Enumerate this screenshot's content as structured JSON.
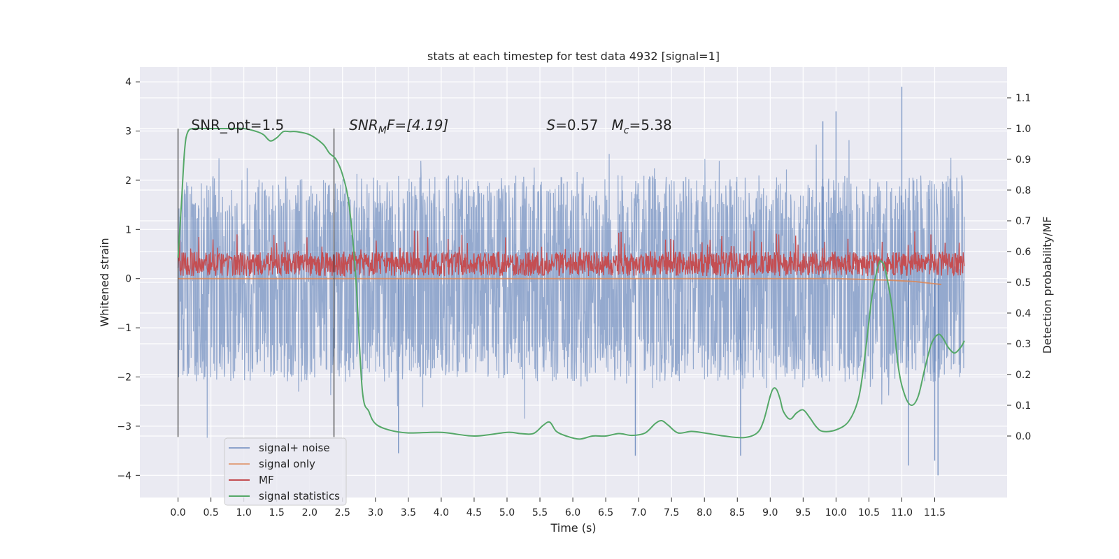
{
  "chart_data": {
    "type": "line",
    "title": "stats at each timestep for test data 4932 [signal=1]",
    "xlabel": "Time (s)",
    "ylabel": "Whitened strain",
    "y2label": "Detection probability/MF",
    "xlim": [
      -0.58,
      12.6
    ],
    "ylim": [
      -4.45,
      4.3
    ],
    "y2lim": [
      -0.2,
      1.2
    ],
    "x_ticks": [
      0.0,
      0.5,
      1.0,
      1.5,
      2.0,
      2.5,
      3.0,
      3.5,
      4.0,
      4.5,
      5.0,
      5.5,
      6.0,
      6.5,
      7.0,
      7.5,
      8.0,
      8.5,
      9.0,
      9.5,
      10.0,
      10.5,
      11.0,
      11.5
    ],
    "x_tick_labels": [
      "0.0",
      "0.5",
      "1.0",
      "1.5",
      "2.0",
      "2.5",
      "3.0",
      "3.5",
      "4.0",
      "4.5",
      "5.0",
      "5.5",
      "6.0",
      "6.5",
      "7.0",
      "7.5",
      "8.0",
      "8.5",
      "9.0",
      "9.5",
      "10.0",
      "10.5",
      "11.0",
      "11.5"
    ],
    "y_ticks": [
      -4,
      -3,
      -2,
      -1,
      0,
      1,
      2,
      3,
      4
    ],
    "y_tick_labels": [
      "−4",
      "−3",
      "−2",
      "−1",
      "0",
      "1",
      "2",
      "3",
      "4"
    ],
    "y2_ticks": [
      0.0,
      0.1,
      0.2,
      0.3,
      0.4,
      0.5,
      0.6,
      0.7,
      0.8,
      0.9,
      1.0,
      1.1
    ],
    "y2_tick_labels": [
      "0.0",
      "0.1",
      "0.2",
      "0.3",
      "0.4",
      "0.5",
      "0.6",
      "0.7",
      "0.8",
      "0.9",
      "1.0",
      "1.1"
    ],
    "grid": true,
    "legend_position": "lower-left",
    "vertical_markers": [
      0.0,
      2.37
    ],
    "annotations": [
      {
        "text": "SNR_opt=1.5",
        "x": 0.2,
        "y": 3.02,
        "italic": false
      },
      {
        "text": "SNRₘF=[4.19]",
        "x": 2.6,
        "y": 3.02,
        "italic": true,
        "parts": [
          "SNR",
          "M",
          "F=[4.19]"
        ]
      },
      {
        "text": "S=0.57   Mᴄ=5.38",
        "x": 5.6,
        "y": 3.02,
        "italic": true,
        "parts": [
          "S",
          "=0.57   ",
          "M",
          "c",
          "=5.38"
        ]
      }
    ],
    "series": [
      {
        "name": "signal+ noise",
        "color": "#4c72b0",
        "axis": "left",
        "kind": "noise",
        "x_range": [
          0.0,
          11.95
        ],
        "envelope_typical": 1.7,
        "peaks": [
          [
            11.0,
            3.9
          ],
          [
            11.55,
            -4.0
          ],
          [
            11.1,
            -3.8
          ],
          [
            6.95,
            -3.6
          ],
          [
            3.35,
            -3.55
          ],
          [
            8.55,
            -3.6
          ],
          [
            10.0,
            3.4
          ],
          [
            9.8,
            3.2
          ],
          [
            11.5,
            -3.7
          ]
        ]
      },
      {
        "name": "signal only",
        "color": "#dd8452",
        "axis": "left",
        "x": [
          0.0,
          2.0,
          4.0,
          6.0,
          8.0,
          10.0,
          10.8,
          11.2,
          11.6
        ],
        "y": [
          0.0,
          0.0,
          0.0,
          0.0,
          0.0,
          0.0,
          -0.03,
          -0.06,
          -0.12
        ]
      },
      {
        "name": "MF",
        "color": "#c44e52",
        "axis": "left",
        "kind": "mf_noise",
        "x_range": [
          0.0,
          11.95
        ],
        "base": 0.05,
        "typical_max": 0.55,
        "peak_max": 0.98
      },
      {
        "name": "signal statistics",
        "color": "#55a868",
        "axis": "right",
        "x": [
          0.0,
          0.05,
          0.1,
          0.15,
          0.25,
          0.4,
          0.6,
          0.8,
          1.0,
          1.2,
          1.3,
          1.4,
          1.5,
          1.6,
          1.7,
          1.8,
          2.0,
          2.2,
          2.3,
          2.4,
          2.5,
          2.6,
          2.7,
          2.8,
          2.9,
          3.0,
          3.2,
          3.5,
          4.0,
          4.5,
          5.0,
          5.2,
          5.4,
          5.55,
          5.65,
          5.75,
          5.9,
          6.1,
          6.3,
          6.5,
          6.7,
          6.9,
          7.1,
          7.25,
          7.35,
          7.45,
          7.6,
          7.8,
          8.0,
          8.3,
          8.6,
          8.8,
          8.9,
          9.0,
          9.05,
          9.1,
          9.15,
          9.2,
          9.3,
          9.4,
          9.5,
          9.6,
          9.7,
          9.8,
          10.0,
          10.2,
          10.35,
          10.45,
          10.55,
          10.65,
          10.7,
          10.75,
          10.85,
          10.95,
          11.05,
          11.15,
          11.25,
          11.35,
          11.45,
          11.55,
          11.62,
          11.7,
          11.8,
          11.9,
          11.95
        ],
        "y": [
          0.58,
          0.75,
          0.93,
          0.99,
          1.0,
          1.0,
          1.0,
          1.0,
          1.0,
          0.99,
          0.98,
          0.96,
          0.97,
          0.99,
          0.99,
          0.99,
          0.98,
          0.95,
          0.92,
          0.9,
          0.85,
          0.75,
          0.52,
          0.15,
          0.08,
          0.04,
          0.02,
          0.01,
          0.012,
          0.0,
          0.012,
          0.008,
          0.008,
          0.035,
          0.045,
          0.015,
          0.0,
          -0.01,
          0.0,
          0.0,
          0.008,
          0.002,
          0.01,
          0.04,
          0.05,
          0.035,
          0.01,
          0.015,
          0.01,
          0.0,
          -0.005,
          0.01,
          0.05,
          0.13,
          0.155,
          0.15,
          0.12,
          0.08,
          0.055,
          0.075,
          0.085,
          0.06,
          0.03,
          0.015,
          0.02,
          0.05,
          0.13,
          0.28,
          0.46,
          0.56,
          0.565,
          0.54,
          0.42,
          0.22,
          0.13,
          0.1,
          0.13,
          0.22,
          0.3,
          0.33,
          0.32,
          0.29,
          0.27,
          0.29,
          0.31
        ]
      }
    ]
  }
}
